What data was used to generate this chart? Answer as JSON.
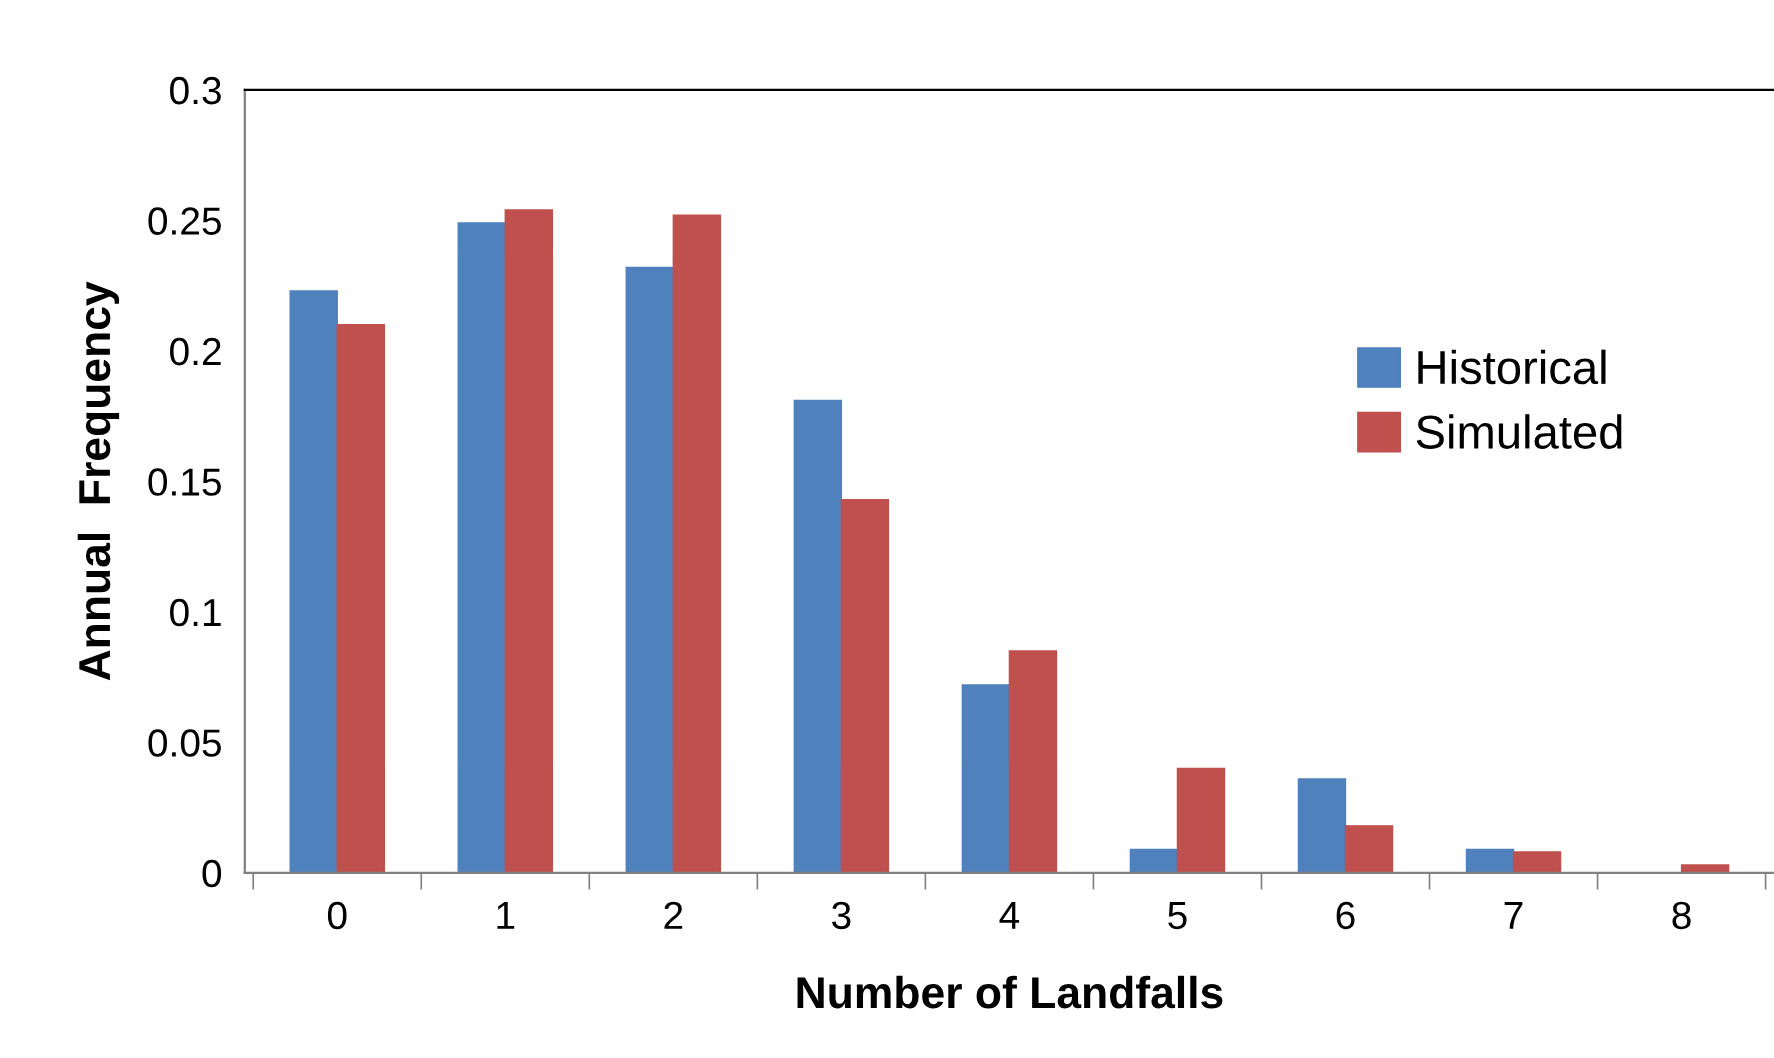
{
  "chart_data": {
    "type": "bar",
    "xlabel": "Number of Landfalls",
    "ylabel": "Annual  Frequency",
    "categories": [
      "0",
      "1",
      "2",
      "3",
      "4",
      "5",
      "6",
      "7",
      "8"
    ],
    "series": [
      {
        "name": "Historical",
        "color": "#4f81bd",
        "values": [
          0.223,
          0.249,
          0.232,
          0.181,
          0.072,
          0.009,
          0.036,
          0.009,
          0
        ]
      },
      {
        "name": "Simulated",
        "color": "#c0504d",
        "values": [
          0.21,
          0.254,
          0.252,
          0.143,
          0.085,
          0.04,
          0.018,
          0.008,
          0.003
        ]
      }
    ],
    "ylim": [
      0,
      0.3
    ],
    "yticks": [
      0,
      0.05,
      0.1,
      0.15,
      0.2,
      0.25,
      0.3
    ],
    "grid": false,
    "legend": "right"
  }
}
